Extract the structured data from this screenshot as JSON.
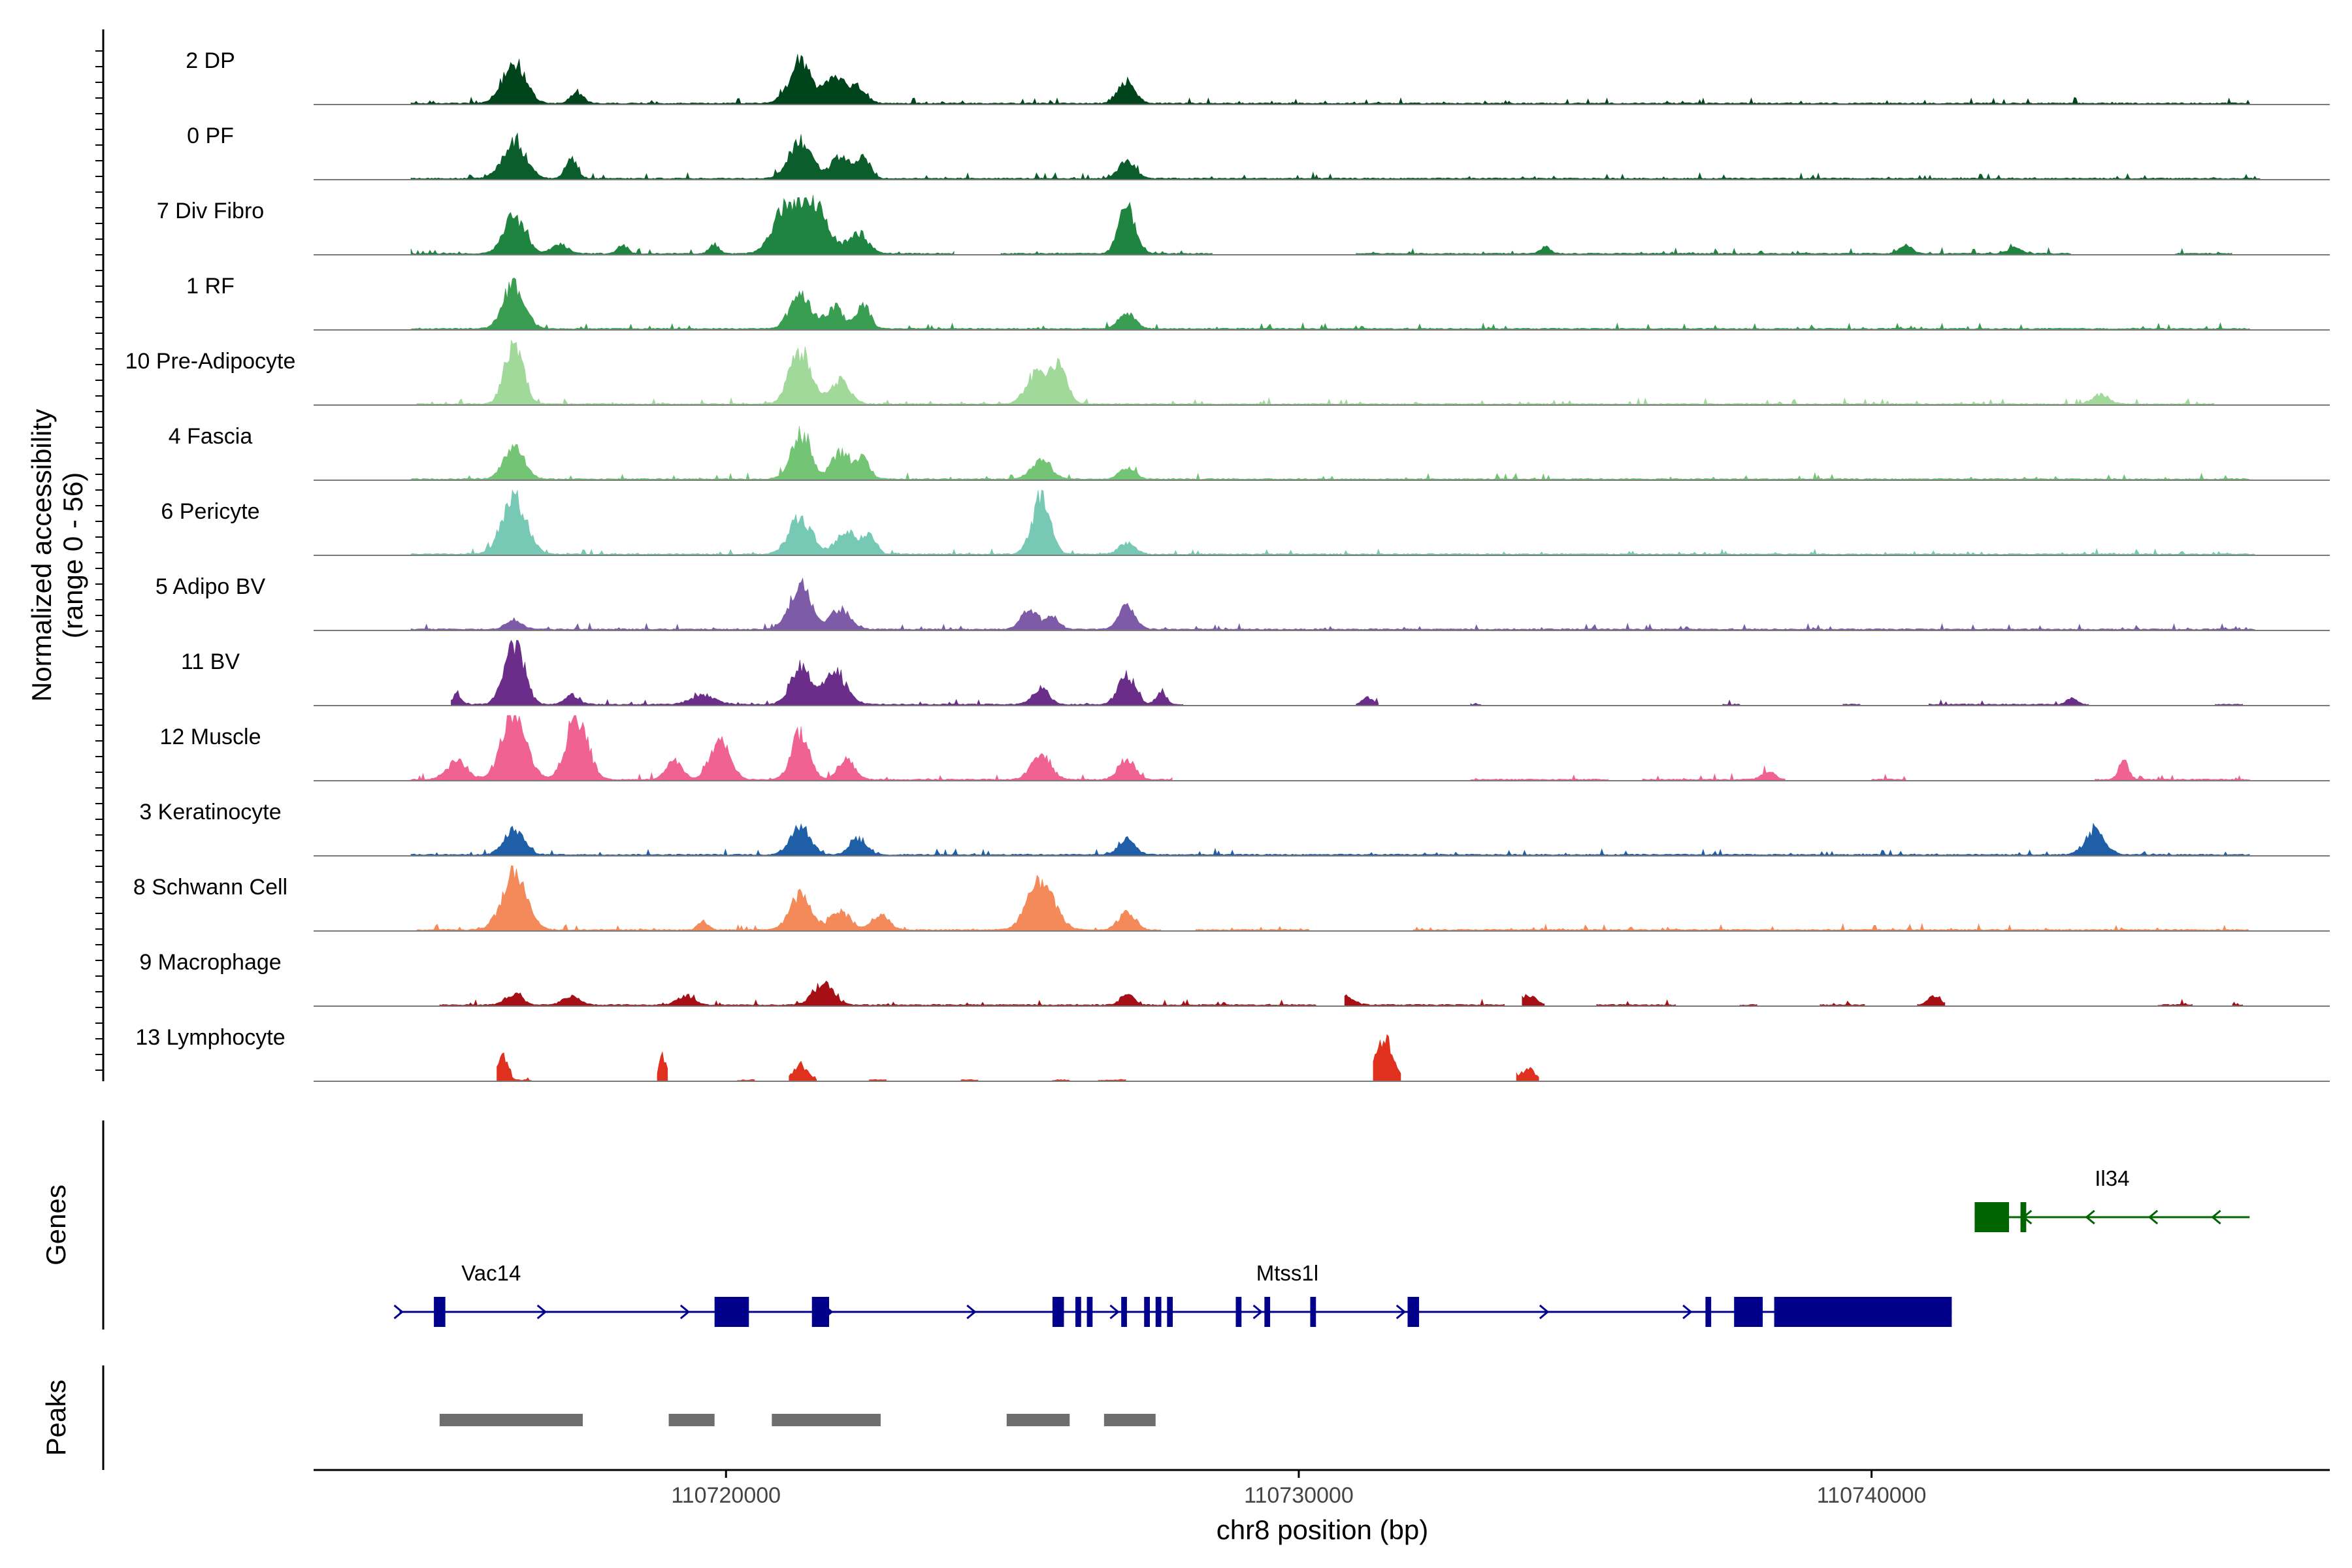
{
  "chart_data": {
    "type": "area",
    "title": "",
    "xlabel": "chr8 position (bp)",
    "ylabel": "Normalized accessibility",
    "ylabel_range": "(range 0 - 56)",
    "xlim": [
      110712800,
      110748000
    ],
    "ylim": [
      0,
      56
    ],
    "x_ticks": [
      110720000,
      110730000,
      110740000
    ],
    "x_tick_labels": [
      "110720000",
      "110730000",
      "110740000"
    ],
    "tracks": [
      {
        "label": "2 DP",
        "color": "#00441b",
        "peaks": [
          [
            110716300,
            36,
            280
          ],
          [
            110717400,
            10,
            150
          ],
          [
            110721300,
            34,
            280
          ],
          [
            110721900,
            22,
            240
          ],
          [
            110722300,
            14,
            200
          ],
          [
            110727000,
            20,
            200
          ]
        ],
        "bins": [
          [
            110714500,
            110746600
          ]
        ]
      },
      {
        "label": "0 PF",
        "color": "#0b5e2c",
        "peaks": [
          [
            110716300,
            32,
            280
          ],
          [
            110717300,
            16,
            150
          ],
          [
            110721300,
            34,
            280
          ],
          [
            110722000,
            20,
            220
          ],
          [
            110722400,
            20,
            160
          ],
          [
            110727000,
            16,
            200
          ]
        ],
        "bins": [
          [
            110714500,
            110746800
          ]
        ]
      },
      {
        "label": "7 Div Fibro",
        "color": "#1e843f",
        "peaks": [
          [
            110716300,
            32,
            260
          ],
          [
            110717100,
            8,
            200
          ],
          [
            110718200,
            8,
            120
          ],
          [
            110719800,
            8,
            120
          ],
          [
            110721000,
            34,
            300
          ],
          [
            110721500,
            46,
            350
          ],
          [
            110722300,
            18,
            240
          ],
          [
            110727000,
            40,
            200
          ],
          [
            110734300,
            6,
            120
          ],
          [
            110740600,
            8,
            150
          ],
          [
            110742500,
            6,
            150
          ]
        ],
        "bins": [
          [
            110714500,
            110724000
          ],
          [
            110724800,
            110728500
          ],
          [
            110731000,
            110743500
          ],
          [
            110745300,
            110746300
          ]
        ]
      },
      {
        "label": "1 RF",
        "color": "#3a9e52",
        "peaks": [
          [
            110716300,
            38,
            260
          ],
          [
            110721300,
            30,
            260
          ],
          [
            110721900,
            18,
            220
          ],
          [
            110722400,
            22,
            160
          ],
          [
            110727000,
            14,
            200
          ]
        ],
        "bins": [
          [
            110714500,
            110746600
          ]
        ]
      },
      {
        "label": "10 Pre-Adipocyte",
        "color": "#a1d99b",
        "peaks": [
          [
            110716300,
            56,
            220
          ],
          [
            110721300,
            46,
            260
          ],
          [
            110722000,
            20,
            240
          ],
          [
            110725400,
            26,
            240
          ],
          [
            110725800,
            36,
            200
          ],
          [
            110744000,
            8,
            200
          ]
        ],
        "bins": [
          [
            110714600,
            110746000
          ]
        ]
      },
      {
        "label": "4 Fascia",
        "color": "#74c476",
        "peaks": [
          [
            110716300,
            32,
            240
          ],
          [
            110721300,
            40,
            240
          ],
          [
            110722000,
            24,
            220
          ],
          [
            110722400,
            18,
            160
          ],
          [
            110725500,
            16,
            240
          ],
          [
            110727000,
            10,
            200
          ]
        ],
        "bins": [
          [
            110714500,
            110746600
          ]
        ]
      },
      {
        "label": "6 Pericyte",
        "color": "#77c9b5",
        "peaks": [
          [
            110716300,
            48,
            300
          ],
          [
            110721300,
            32,
            280
          ],
          [
            110722100,
            20,
            240
          ],
          [
            110722500,
            18,
            160
          ],
          [
            110725500,
            50,
            220
          ],
          [
            110727000,
            10,
            200
          ]
        ],
        "bins": [
          [
            110714500,
            110746700
          ]
        ]
      },
      {
        "label": "5 Adipo BV",
        "color": "#7d5ba6",
        "peaks": [
          [
            110716300,
            8,
            200
          ],
          [
            110721300,
            38,
            260
          ],
          [
            110722000,
            18,
            240
          ],
          [
            110725300,
            18,
            200
          ],
          [
            110725700,
            12,
            160
          ],
          [
            110727000,
            20,
            200
          ]
        ],
        "bins": [
          [
            110714500,
            110746700
          ]
        ]
      },
      {
        "label": "11 BV",
        "color": "#6a2d8a",
        "peaks": [
          [
            110715300,
            10,
            100
          ],
          [
            110716300,
            56,
            240
          ],
          [
            110717300,
            8,
            180
          ],
          [
            110719600,
            8,
            300
          ],
          [
            110721300,
            34,
            240
          ],
          [
            110721900,
            28,
            280
          ],
          [
            110725500,
            14,
            200
          ],
          [
            110727000,
            26,
            200
          ],
          [
            110727600,
            12,
            120
          ],
          [
            110731200,
            6,
            120
          ],
          [
            110743500,
            6,
            120
          ]
        ],
        "bins": [
          [
            110715200,
            110728000
          ],
          [
            110731000,
            110731400
          ],
          [
            110733000,
            110733200
          ],
          [
            110737400,
            110737700
          ],
          [
            110739500,
            110739800
          ],
          [
            110741000,
            110743800
          ],
          [
            110746000,
            110746500
          ]
        ]
      },
      {
        "label": "12 Muscle",
        "color": "#f06292",
        "peaks": [
          [
            110715300,
            16,
            250
          ],
          [
            110716300,
            56,
            300
          ],
          [
            110717400,
            56,
            260
          ],
          [
            110719100,
            16,
            200
          ],
          [
            110719900,
            36,
            240
          ],
          [
            110721300,
            40,
            220
          ],
          [
            110722100,
            18,
            200
          ],
          [
            110725500,
            22,
            240
          ],
          [
            110727000,
            18,
            200
          ],
          [
            110738200,
            8,
            150
          ],
          [
            110744400,
            16,
            120
          ]
        ],
        "bins": [
          [
            110714500,
            110727800
          ],
          [
            110733000,
            110735400
          ],
          [
            110736000,
            110738500
          ],
          [
            110740000,
            110740600
          ],
          [
            110743900,
            110746600
          ]
        ]
      },
      {
        "label": "3 Keratinocyte",
        "color": "#1f5fa8",
        "peaks": [
          [
            110716300,
            22,
            240
          ],
          [
            110721300,
            26,
            240
          ],
          [
            110722300,
            14,
            200
          ],
          [
            110727000,
            14,
            200
          ],
          [
            110743900,
            22,
            240
          ]
        ],
        "bins": [
          [
            110714500,
            110746600
          ]
        ]
      },
      {
        "label": "8 Schwann Cell",
        "color": "#f4895a",
        "peaks": [
          [
            110716300,
            48,
            300
          ],
          [
            110719600,
            8,
            120
          ],
          [
            110721300,
            30,
            260
          ],
          [
            110722000,
            16,
            240
          ],
          [
            110722700,
            14,
            200
          ],
          [
            110725500,
            42,
            320
          ],
          [
            110727000,
            16,
            200
          ]
        ],
        "bins": [
          [
            110714600,
            110727600
          ],
          [
            110728200,
            110730200
          ],
          [
            110732000,
            110746600
          ]
        ]
      },
      {
        "label": "9 Macrophage",
        "color": "#a50f15",
        "peaks": [
          [
            110716300,
            10,
            200
          ],
          [
            110717300,
            8,
            200
          ],
          [
            110719300,
            8,
            200
          ],
          [
            110721700,
            18,
            250
          ],
          [
            110727000,
            10,
            150
          ],
          [
            110730800,
            8,
            200
          ],
          [
            110734000,
            8,
            200
          ],
          [
            110741100,
            8,
            150
          ]
        ],
        "bins": [
          [
            110715000,
            110730300
          ],
          [
            110730800,
            110733600
          ],
          [
            110733900,
            110734300
          ],
          [
            110735200,
            110736600
          ],
          [
            110737700,
            110738000
          ],
          [
            110739100,
            110739900
          ],
          [
            110740800,
            110741300
          ],
          [
            110745000,
            110745600
          ],
          [
            110746300,
            110746500
          ]
        ]
      },
      {
        "label": "13 Lymphocyte",
        "color": "#e0301e",
        "peaks": [
          [
            110716100,
            24,
            120
          ],
          [
            110718900,
            20,
            100
          ],
          [
            110721300,
            14,
            160
          ],
          [
            110731500,
            38,
            200
          ],
          [
            110734000,
            10,
            160
          ]
        ],
        "bins": [
          [
            110716000,
            110716600
          ],
          [
            110718800,
            110719000
          ],
          [
            110720200,
            110720500
          ],
          [
            110721100,
            110721600
          ],
          [
            110722500,
            110722800
          ],
          [
            110724100,
            110724400
          ],
          [
            110725700,
            110726000
          ],
          [
            110726500,
            110727000
          ],
          [
            110731300,
            110731800
          ],
          [
            110733800,
            110734200
          ]
        ]
      }
    ],
    "genes": [
      {
        "name": "Vac14",
        "label_x": 110715900,
        "strand": "+",
        "color": "#00008b",
        "start": 110714300,
        "end": 110741400,
        "exons": [
          [
            110714900,
            110715100
          ],
          [
            110719800,
            110720400
          ],
          [
            110721500,
            110721800
          ],
          [
            110725700,
            110725900
          ],
          [
            110726100,
            110726200
          ],
          [
            110726300,
            110726400
          ]
        ]
      },
      {
        "name": "Mtss1l",
        "label_x": 110729800,
        "strand": "+",
        "color": "#00008b",
        "start": 110714300,
        "end": 110741400,
        "exons": [
          [
            110726900,
            110727000
          ],
          [
            110727300,
            110727400
          ],
          [
            110727500,
            110727600
          ],
          [
            110727700,
            110727800
          ],
          [
            110728900,
            110729000
          ],
          [
            110729400,
            110729500
          ],
          [
            110730200,
            110730300
          ],
          [
            110731900,
            110732100
          ],
          [
            110737100,
            110737200
          ],
          [
            110737600,
            110738100
          ],
          [
            110738300,
            110741400
          ]
        ]
      },
      {
        "name": "Il34",
        "label_x": 110744200,
        "strand": "-",
        "color": "#006400",
        "start": 110741800,
        "end": 110746600,
        "exons": [
          [
            110741800,
            110742400
          ],
          [
            110742600,
            110742700
          ]
        ]
      }
    ],
    "peaks": [
      [
        110715000,
        110717500
      ],
      [
        110719000,
        110719800
      ],
      [
        110720800,
        110722700
      ],
      [
        110724900,
        110726000
      ],
      [
        110726600,
        110727500
      ]
    ]
  }
}
